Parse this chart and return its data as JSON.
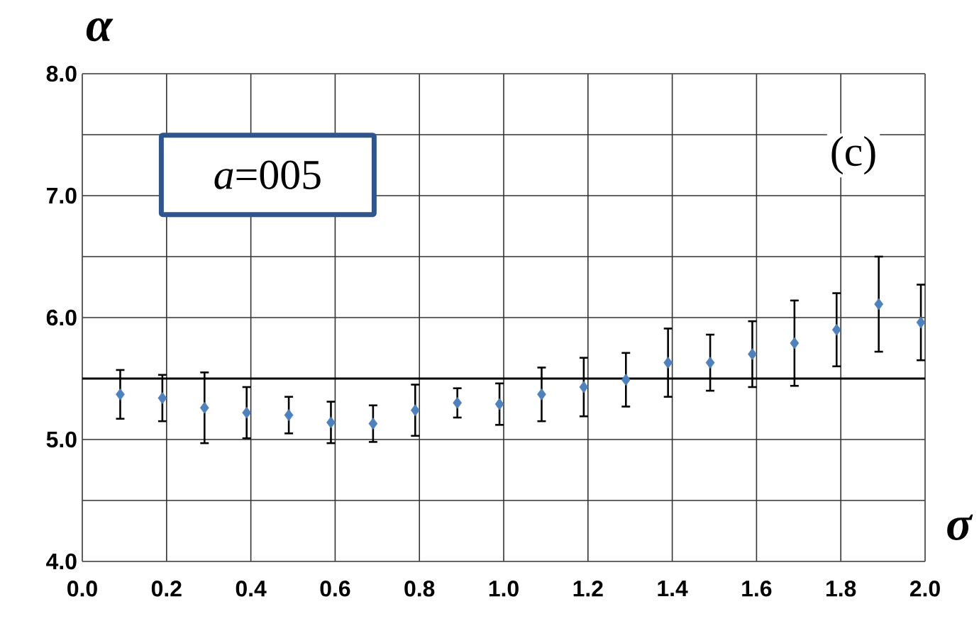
{
  "chart_data": {
    "type": "scatter",
    "xlabel": "σ",
    "ylabel": "α",
    "annotations": [
      "*a*=005",
      "(c)"
    ],
    "x": [
      0.09,
      0.19,
      0.29,
      0.39,
      0.49,
      0.59,
      0.69,
      0.79,
      0.89,
      0.99,
      1.09,
      1.19,
      1.29,
      1.39,
      1.49,
      1.59,
      1.69,
      1.79,
      1.89,
      1.99
    ],
    "values": [
      5.37,
      5.34,
      5.26,
      5.22,
      5.2,
      5.14,
      5.13,
      5.24,
      5.3,
      5.29,
      5.37,
      5.43,
      5.49,
      5.63,
      5.63,
      5.7,
      5.79,
      5.9,
      6.11,
      5.96
    ],
    "errors": [
      0.2,
      0.19,
      0.29,
      0.21,
      0.15,
      0.17,
      0.15,
      0.21,
      0.12,
      0.17,
      0.22,
      0.24,
      0.22,
      0.28,
      0.23,
      0.27,
      0.35,
      0.3,
      0.39,
      0.31
    ],
    "color": "#4f81bd",
    "marker": "diamond",
    "grid": true,
    "ref_lines": [
      {
        "axis": "y",
        "value": 5.5,
        "color": "#000000"
      }
    ],
    "xlim": [
      0,
      2
    ],
    "ylim": [
      4,
      8
    ],
    "xticks": [
      {
        "value": 0,
        "label": "0.0"
      },
      {
        "value": 0.2,
        "label": "0.2"
      },
      {
        "value": 0.4,
        "label": "0.4"
      },
      {
        "value": 0.6,
        "label": "0.6"
      },
      {
        "value": 0.8,
        "label": "0.8"
      },
      {
        "value": 1,
        "label": "1.0"
      },
      {
        "value": 1.2,
        "label": "1.2"
      },
      {
        "value": 1.4,
        "label": "1.4"
      },
      {
        "value": 1.6,
        "label": "1.6"
      },
      {
        "value": 1.8,
        "label": "1.8"
      },
      {
        "value": 2,
        "label": "2.0"
      }
    ],
    "yticks": [
      {
        "value": 4,
        "label": "4.0"
      },
      {
        "value": 4.5,
        "label": null
      },
      {
        "value": 5,
        "label": "5.0"
      },
      {
        "value": 5.5,
        "label": null
      },
      {
        "value": 6,
        "label": "6.0"
      },
      {
        "value": 6.5,
        "label": null
      },
      {
        "value": 7,
        "label": "7.0"
      },
      {
        "value": 7.5,
        "label": null
      },
      {
        "value": 8,
        "label": "8.0"
      }
    ]
  }
}
